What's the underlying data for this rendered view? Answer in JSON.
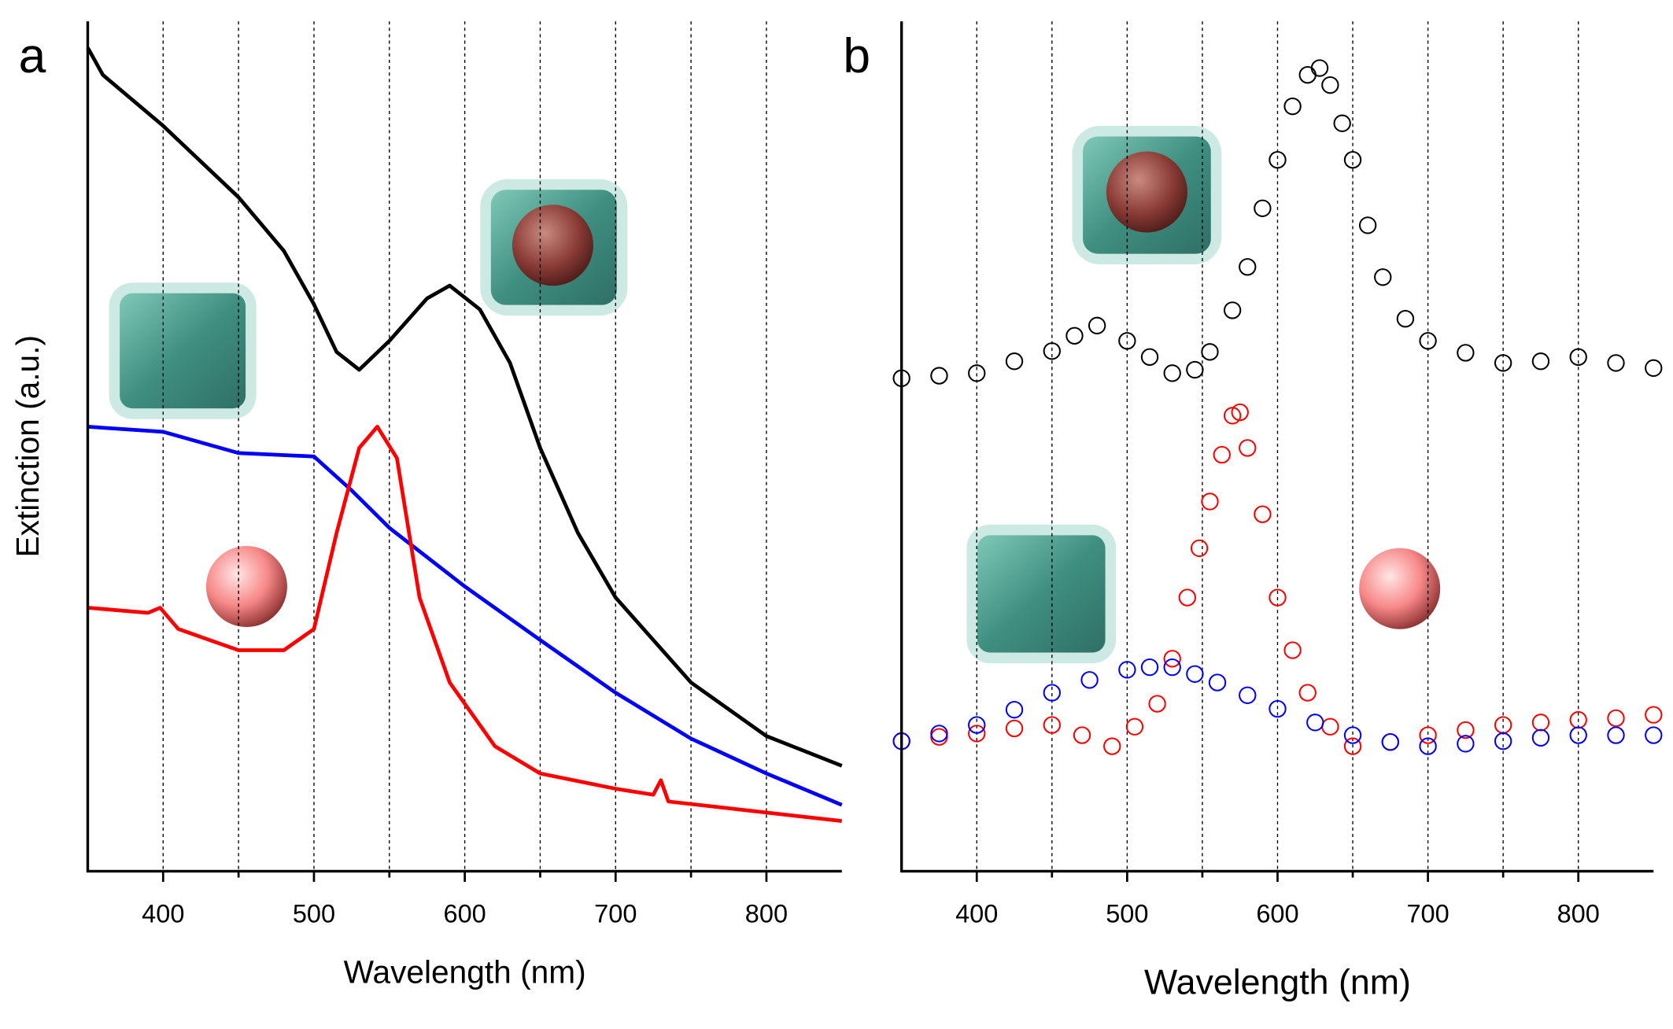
{
  "chart_data": [
    {
      "type": "line",
      "panel_label": "a",
      "x_label": "Wavelength (nm)",
      "y_label": "Extinction (a.u.)",
      "xlim": [
        350,
        850
      ],
      "ylim": [
        0,
        1
      ],
      "xticks": [
        400,
        500,
        600,
        700,
        800
      ],
      "xminor": [
        450,
        550,
        650,
        750
      ],
      "grid": true,
      "series": [
        {
          "color": "#000000",
          "x": [
            350,
            360,
            400,
            450,
            480,
            500,
            515,
            530,
            550,
            575,
            590,
            610,
            630,
            650,
            675,
            700,
            725,
            750,
            800,
            850
          ],
          "values": [
            0.969,
            0.937,
            0.877,
            0.793,
            0.73,
            0.667,
            0.611,
            0.59,
            0.624,
            0.674,
            0.689,
            0.661,
            0.598,
            0.498,
            0.398,
            0.322,
            0.272,
            0.222,
            0.159,
            0.124
          ]
        },
        {
          "color": "#0000ff",
          "x": [
            350,
            400,
            450,
            500,
            525,
            550,
            600,
            650,
            700,
            750,
            800,
            850
          ],
          "values": [
            0.523,
            0.517,
            0.492,
            0.488,
            0.448,
            0.404,
            0.335,
            0.272,
            0.21,
            0.156,
            0.115,
            0.078
          ]
        },
        {
          "color": "#ff0000",
          "x": [
            350,
            390,
            398,
            410,
            450,
            480,
            500,
            515,
            530,
            542,
            555,
            570,
            590,
            620,
            650,
            700,
            725,
            730,
            735,
            800,
            850
          ],
          "values": [
            0.31,
            0.304,
            0.31,
            0.285,
            0.26,
            0.26,
            0.285,
            0.398,
            0.498,
            0.523,
            0.486,
            0.322,
            0.222,
            0.147,
            0.115,
            0.097,
            0.09,
            0.107,
            0.082,
            0.069,
            0.059
          ]
        }
      ]
    },
    {
      "type": "scatter",
      "panel_label": "b",
      "x_label": "Wavelength (nm)",
      "xlim": [
        350,
        850
      ],
      "ylim": [
        0,
        1
      ],
      "xticks": [
        400,
        500,
        600,
        700,
        800
      ],
      "xminor": [
        450,
        550,
        650,
        750
      ],
      "grid": true,
      "series": [
        {
          "color": "#000000",
          "x": [
            350,
            375,
            400,
            425,
            450,
            465,
            480,
            500,
            515,
            530,
            545,
            555,
            570,
            580,
            590,
            600,
            610,
            620,
            628,
            635,
            643,
            650,
            660,
            670,
            685,
            700,
            725,
            750,
            775,
            800,
            825,
            850
          ],
          "values": [
            0.58,
            0.583,
            0.586,
            0.6,
            0.612,
            0.63,
            0.642,
            0.624,
            0.605,
            0.586,
            0.59,
            0.611,
            0.66,
            0.711,
            0.78,
            0.837,
            0.9,
            0.937,
            0.945,
            0.925,
            0.88,
            0.837,
            0.76,
            0.699,
            0.65,
            0.624,
            0.61,
            0.598,
            0.6,
            0.605,
            0.598,
            0.592
          ]
        },
        {
          "color": "#ff0000",
          "x": [
            350,
            375,
            400,
            425,
            450,
            470,
            490,
            505,
            520,
            530,
            540,
            548,
            555,
            563,
            570,
            575,
            580,
            590,
            600,
            610,
            620,
            635,
            650,
            675,
            700,
            725,
            750,
            775,
            800,
            825,
            850
          ],
          "values": [
            0.153,
            0.158,
            0.162,
            0.168,
            0.172,
            0.16,
            0.147,
            0.17,
            0.197,
            0.25,
            0.322,
            0.38,
            0.435,
            0.49,
            0.536,
            0.54,
            0.498,
            0.42,
            0.322,
            0.26,
            0.21,
            0.17,
            0.147,
            0.152,
            0.16,
            0.166,
            0.172,
            0.175,
            0.178,
            0.18,
            0.184
          ]
        },
        {
          "color": "#0000ff",
          "x": [
            350,
            375,
            400,
            425,
            450,
            475,
            500,
            515,
            530,
            545,
            560,
            580,
            600,
            625,
            650,
            675,
            700,
            725,
            750,
            775,
            800,
            825,
            850
          ],
          "values": [
            0.153,
            0.162,
            0.172,
            0.19,
            0.21,
            0.225,
            0.237,
            0.24,
            0.24,
            0.232,
            0.222,
            0.207,
            0.191,
            0.175,
            0.16,
            0.152,
            0.147,
            0.15,
            0.153,
            0.157,
            0.16,
            0.16,
            0.16
          ]
        }
      ]
    }
  ]
}
